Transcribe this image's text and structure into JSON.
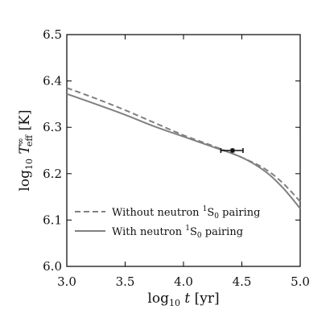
{
  "chart_data": {
    "type": "line",
    "title": "",
    "xlabel": "log10 t [yr]",
    "ylabel": "log10 T∞eff [K]",
    "xlim": [
      3.0,
      5.0
    ],
    "ylim": [
      6.0,
      6.5
    ],
    "x_ticks": [
      "3.0",
      "3.5",
      "4.0",
      "4.5",
      "5.0"
    ],
    "y_ticks": [
      "6.0",
      "6.1",
      "6.2",
      "6.3",
      "6.4",
      "6.5"
    ],
    "grid": false,
    "legend_position": "lower-left",
    "series": [
      {
        "name": "Without neutron 1S0 pairing",
        "style": "dashed",
        "color": "#808080",
        "x": [
          3.0,
          3.25,
          3.5,
          3.75,
          4.0,
          4.25,
          4.5,
          4.7,
          4.85,
          5.0
        ],
        "y": [
          6.385,
          6.362,
          6.337,
          6.31,
          6.283,
          6.26,
          6.235,
          6.21,
          6.18,
          6.14
        ]
      },
      {
        "name": "With neutron 1S0 pairing",
        "style": "solid",
        "color": "#808080",
        "x": [
          3.0,
          3.25,
          3.5,
          3.75,
          4.0,
          4.25,
          4.5,
          4.7,
          4.85,
          5.0
        ],
        "y": [
          6.372,
          6.35,
          6.327,
          6.302,
          6.28,
          6.258,
          6.235,
          6.205,
          6.17,
          6.125
        ]
      }
    ],
    "data_point": {
      "x": 4.42,
      "y": 6.25,
      "x_err": [
        4.32,
        4.51
      ],
      "y_err": [
        6.245,
        6.255
      ],
      "color": "#111111"
    }
  }
}
